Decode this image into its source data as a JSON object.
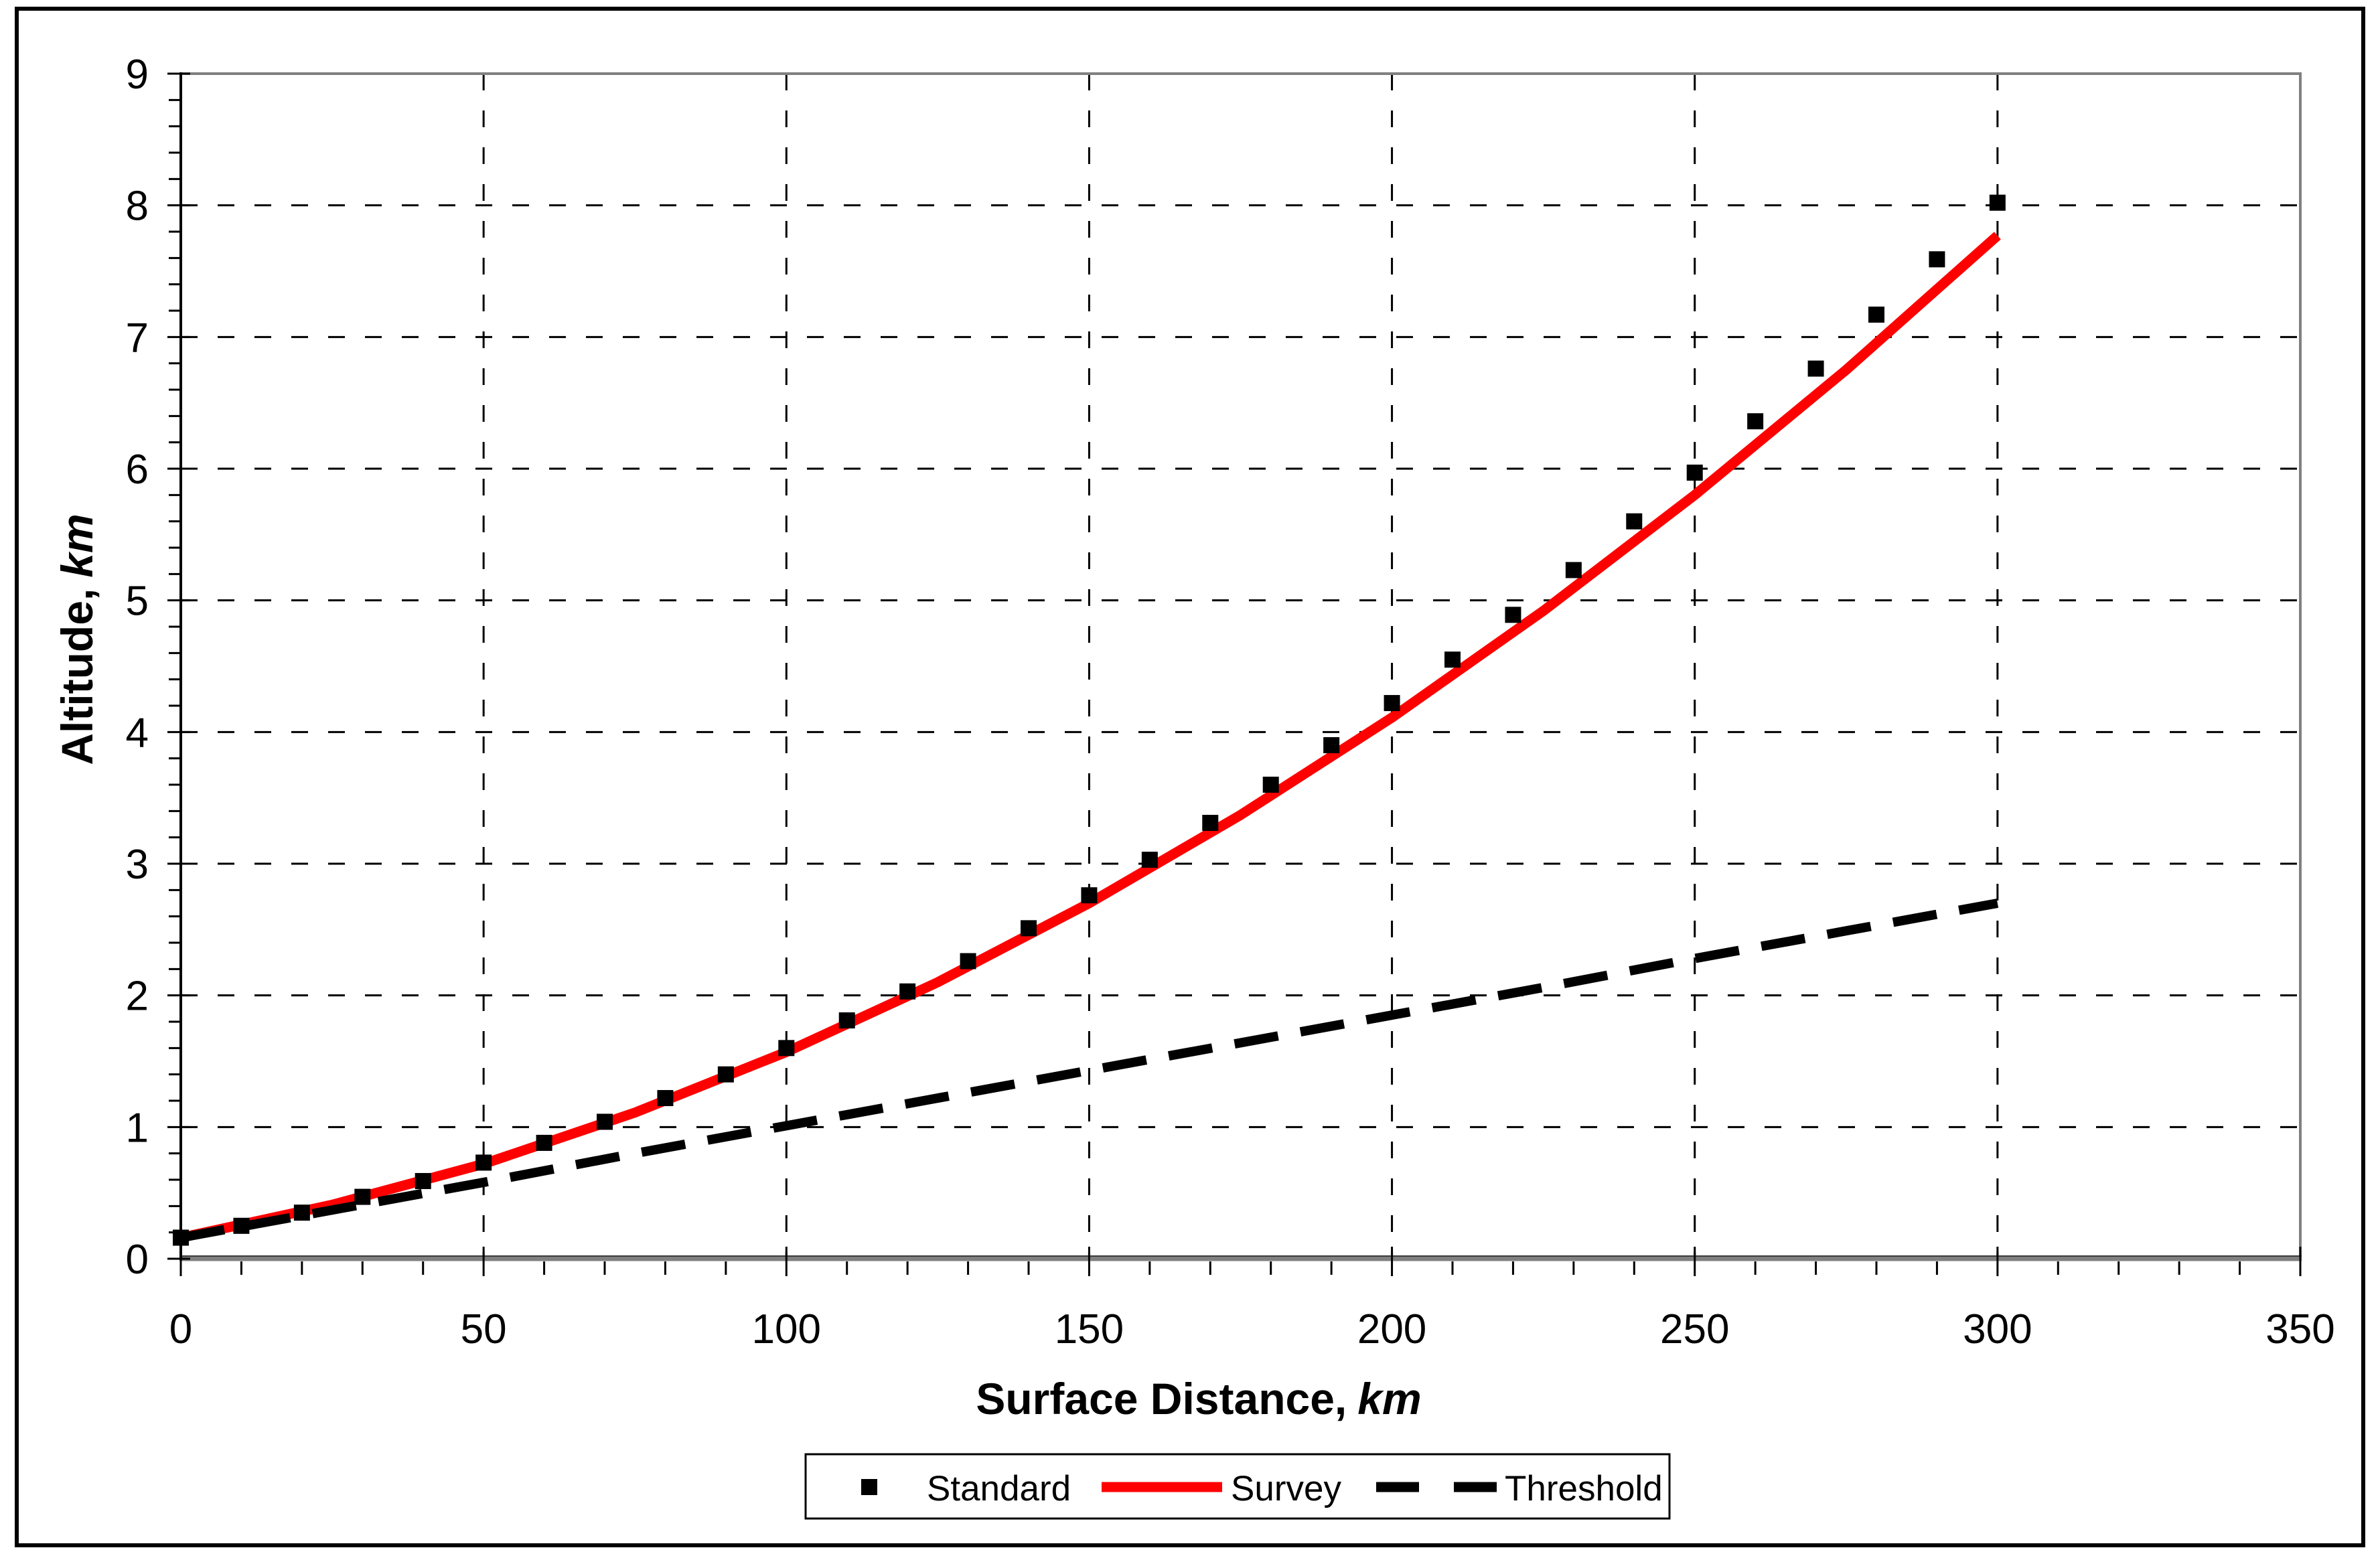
{
  "figure": {
    "background": "#ffffff",
    "outer_border_color": "#000000",
    "plot_border_color": "#808080",
    "axis_line_color": "#000000",
    "gridline_color": "#000000"
  },
  "chart_data": {
    "type": "scatter",
    "title": "",
    "xlabel_text": "Surface Distance,",
    "xlabel_unit": "km",
    "ylabel_text": "Altitude,",
    "ylabel_unit": "km",
    "xlim": [
      0,
      350
    ],
    "ylim": [
      0,
      9
    ],
    "x_ticks": [
      0,
      50,
      100,
      150,
      200,
      250,
      300,
      350
    ],
    "x_minor_step": 10,
    "y_ticks": [
      0,
      1,
      2,
      3,
      4,
      5,
      6,
      7,
      8,
      9
    ],
    "y_minor_step": 0.2,
    "grid": {
      "style": "dashed",
      "x_lines": [
        50,
        100,
        150,
        200,
        250,
        300
      ],
      "y_lines": [
        1,
        2,
        3,
        4,
        5,
        6,
        7,
        8
      ]
    },
    "legend_position": "bottom-center",
    "series": [
      {
        "name": "Standard",
        "type": "scatter",
        "marker": "square",
        "color": "#000000",
        "x": [
          0,
          10,
          20,
          30,
          40,
          50,
          60,
          70,
          80,
          90,
          100,
          110,
          120,
          130,
          140,
          150,
          160,
          170,
          180,
          190,
          200,
          210,
          220,
          230,
          240,
          250,
          260,
          270,
          280,
          290,
          300
        ],
        "y": [
          0.16,
          0.25,
          0.35,
          0.47,
          0.59,
          0.73,
          0.88,
          1.04,
          1.22,
          1.4,
          1.6,
          1.81,
          2.03,
          2.26,
          2.51,
          2.76,
          3.03,
          3.31,
          3.6,
          3.9,
          4.22,
          4.55,
          4.89,
          5.23,
          5.6,
          5.97,
          6.36,
          6.76,
          7.17,
          7.59,
          8.02
        ]
      },
      {
        "name": "Survey",
        "type": "line",
        "line_style": "solid",
        "color": "#ff0000",
        "x": [
          0,
          25,
          50,
          75,
          100,
          125,
          150,
          175,
          200,
          225,
          250,
          275,
          300
        ],
        "y": [
          0.16,
          0.41,
          0.72,
          1.11,
          1.57,
          2.1,
          2.7,
          3.37,
          4.11,
          4.92,
          5.8,
          6.75,
          7.77
        ]
      },
      {
        "name": "Threshold",
        "type": "line",
        "line_style": "dashed",
        "color": "#000000",
        "x": [
          0,
          25,
          50,
          75,
          100,
          125,
          150,
          175,
          200,
          225,
          250,
          275,
          300
        ],
        "y": [
          0.16,
          0.37,
          0.58,
          0.8,
          1.01,
          1.22,
          1.43,
          1.64,
          1.85,
          2.06,
          2.28,
          2.49,
          2.7
        ]
      }
    ]
  }
}
